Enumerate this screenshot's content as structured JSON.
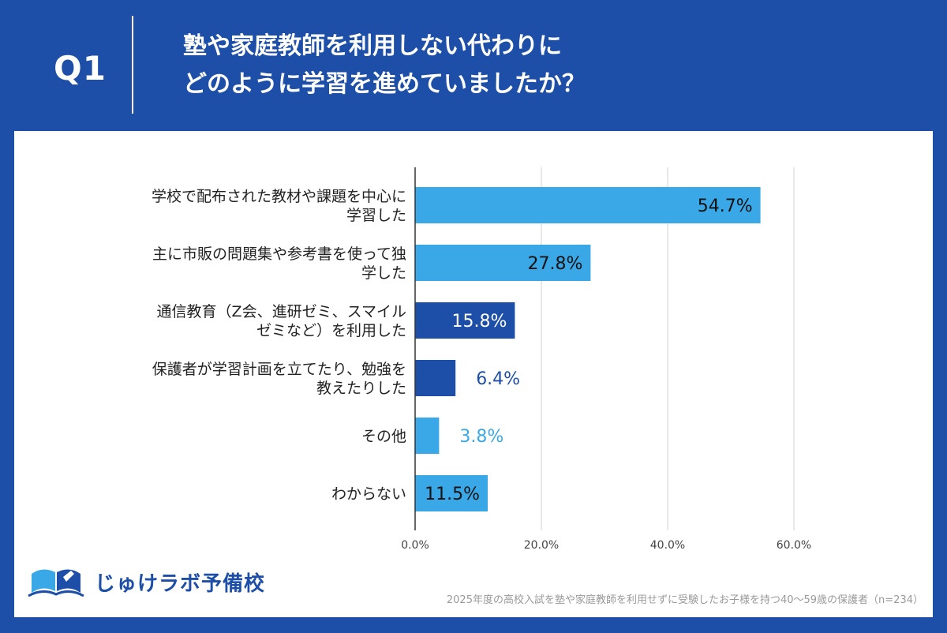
{
  "header": {
    "q_label": "Q1",
    "title_line1": "塾や家庭教師を利用しない代わりに",
    "title_line2": "どのように学習を進めていましたか？"
  },
  "colors": {
    "background": "#1e4fa8",
    "light_bar": "#3aa8e6",
    "dark_bar": "#1e4fa8",
    "grid": "#d0d0d0"
  },
  "chart_data": {
    "type": "bar",
    "orientation": "horizontal",
    "categories": [
      [
        "学校で配布された教材や課題を中心に",
        "学習した"
      ],
      [
        "主に市販の問題集や参考書を使って独",
        "学した"
      ],
      [
        "通信教育（Z会、進研ゼミ、スマイル",
        "ゼミなど）を利用した"
      ],
      [
        "保護者が学習計画を立てたり、勉強を",
        "教えたりした"
      ],
      [
        "その他"
      ],
      [
        "わからない"
      ]
    ],
    "values": [
      54.7,
      27.8,
      15.8,
      6.4,
      3.8,
      11.5
    ],
    "value_labels": [
      "54.7%",
      "27.8%",
      "15.8%",
      "6.4%",
      "3.8%",
      "11.5%"
    ],
    "bar_colors": [
      "#3aa8e6",
      "#3aa8e6",
      "#1e4fa8",
      "#1e4fa8",
      "#3aa8e6",
      "#3aa8e6"
    ],
    "label_inside": [
      true,
      true,
      true,
      false,
      false,
      true
    ],
    "label_colors": [
      "#111111",
      "#111111",
      "#ffffff",
      "#1e4fa8",
      "#3aa8e6",
      "#111111"
    ],
    "xlim": [
      0,
      60
    ],
    "x_ticks": [
      0,
      20,
      40,
      60
    ],
    "x_tick_labels": [
      "0.0%",
      "20.0%",
      "40.0%",
      "60.0%"
    ],
    "grid": true
  },
  "footer": {
    "note": "2025年度の高校入試を塾や家庭教師を利用せずに受験したお子様を持つ40〜59歳の保護者（n=234）",
    "logo_text": "じゅけラボ予備校"
  }
}
